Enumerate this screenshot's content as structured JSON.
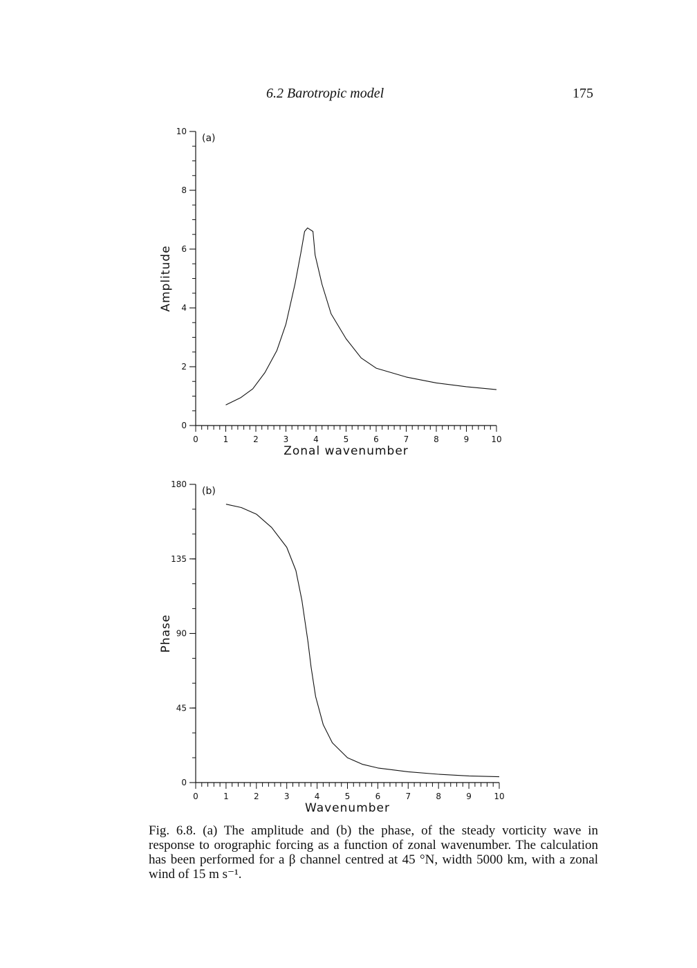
{
  "header": {
    "section_title": "6.2 Barotropic model",
    "page_number": "175"
  },
  "chart_data": [
    {
      "type": "line",
      "panel_label": "(a)",
      "xlabel": "Zonal wavenumber",
      "ylabel": "Amplitude",
      "xlim": [
        0,
        10
      ],
      "ylim": [
        0,
        10
      ],
      "xticks": [
        0,
        1,
        2,
        3,
        4,
        5,
        6,
        7,
        8,
        9,
        10
      ],
      "yticks": [
        0,
        2,
        4,
        6,
        8,
        10
      ],
      "series": [
        {
          "x": [
            1.0,
            1.5,
            1.9,
            2.3,
            2.7,
            3.0,
            3.3,
            3.5,
            3.62,
            3.72,
            3.9,
            3.97,
            4.2,
            4.5,
            5.0,
            5.5,
            6.0,
            7.0,
            8.0,
            9.0,
            10.0
          ],
          "y": [
            0.7,
            0.95,
            1.25,
            1.8,
            2.55,
            3.45,
            4.8,
            5.9,
            6.6,
            6.72,
            6.6,
            5.8,
            4.8,
            3.8,
            2.95,
            2.3,
            1.95,
            1.65,
            1.45,
            1.32,
            1.22
          ]
        }
      ]
    },
    {
      "type": "line",
      "panel_label": "(b)",
      "xlabel": "Wavenumber",
      "ylabel": "Phase",
      "xlim": [
        0,
        10
      ],
      "ylim": [
        0,
        180
      ],
      "xticks": [
        0,
        1,
        2,
        3,
        4,
        5,
        6,
        7,
        8,
        9,
        10
      ],
      "yticks": [
        0,
        45,
        90,
        135,
        180
      ],
      "series": [
        {
          "x": [
            1.0,
            1.5,
            2.0,
            2.5,
            3.0,
            3.3,
            3.5,
            3.7,
            3.8,
            3.95,
            4.2,
            4.5,
            5.0,
            5.5,
            6.0,
            7.0,
            8.0,
            9.0,
            10.0
          ],
          "y": [
            168,
            166,
            162,
            154,
            142,
            128,
            110,
            85,
            70,
            52,
            35,
            24,
            15,
            11,
            8.8,
            6.5,
            5,
            4,
            3.5
          ]
        }
      ]
    }
  ],
  "caption": {
    "text": "Fig. 6.8. (a) The amplitude and (b) the phase, of the steady vorticity wave in response to orographic forcing as a function of zonal wavenumber. The calculation has been performed for a β channel centred at 45 °N, width 5000 km, with a zonal wind of 15 m s⁻¹."
  }
}
